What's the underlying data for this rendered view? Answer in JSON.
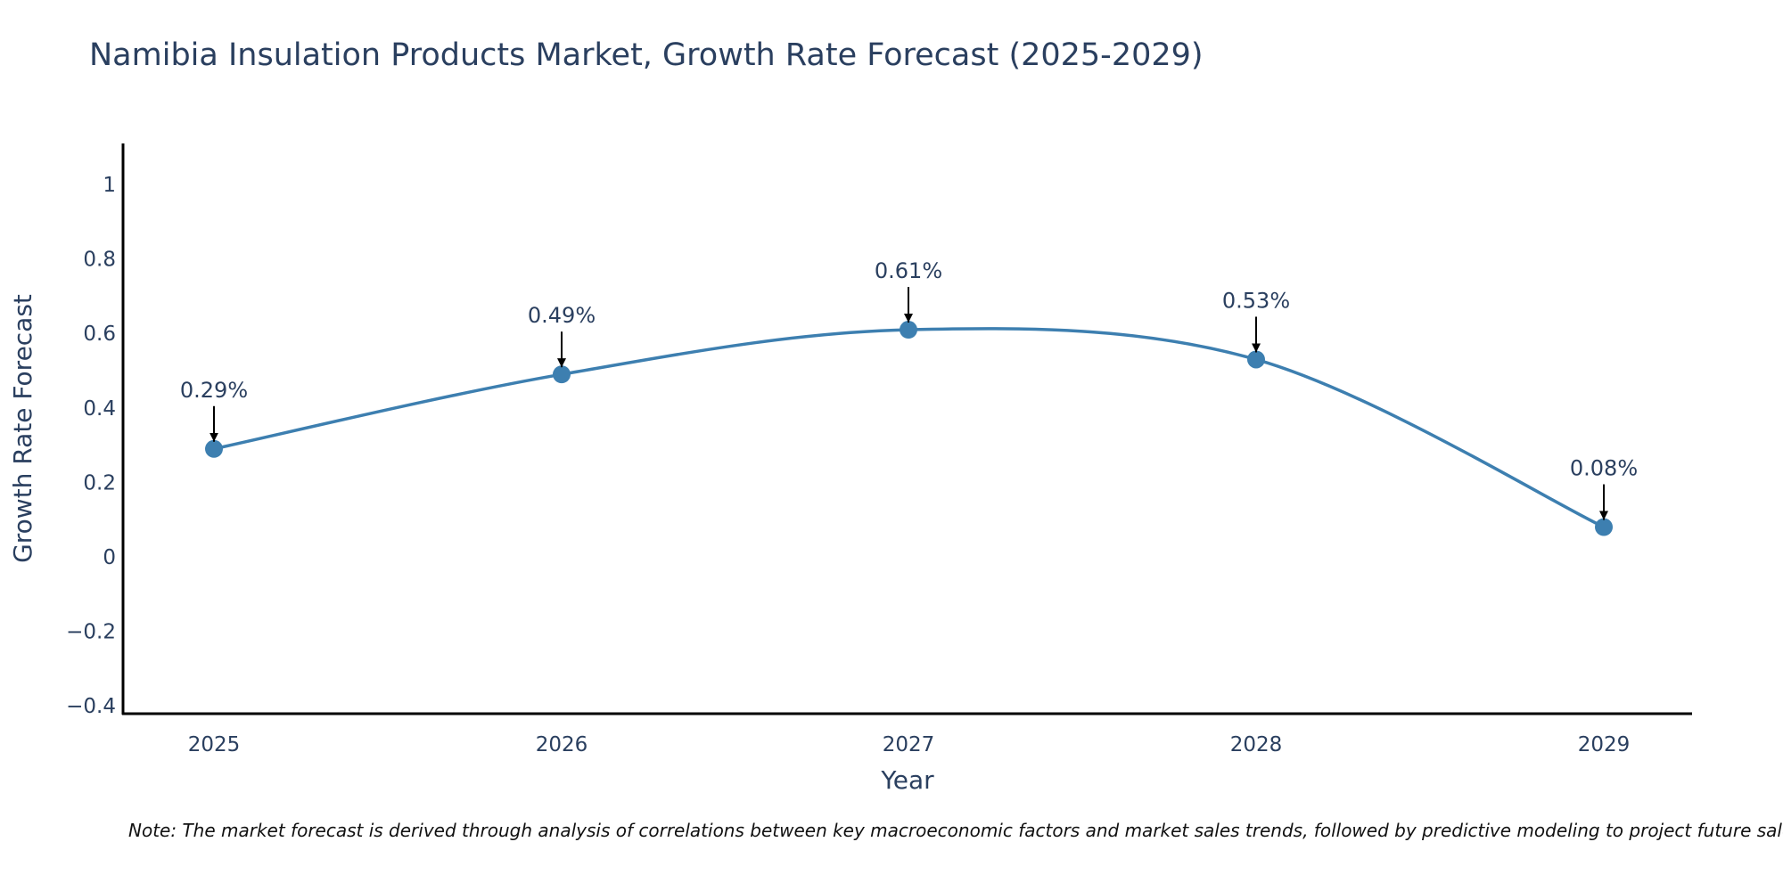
{
  "chart_data": {
    "type": "line",
    "title": "Namibia Insulation Products Market, Growth Rate Forecast (2025-2029)",
    "xlabel": "Year",
    "ylabel": "Growth Rate Forecast",
    "x": [
      "2025",
      "2026",
      "2027",
      "2028",
      "2029"
    ],
    "series": [
      {
        "name": "Growth Rate Forecast",
        "values": [
          0.29,
          0.49,
          0.61,
          0.53,
          0.08
        ],
        "color": "#3d7fb0"
      }
    ],
    "annotations": [
      "0.29%",
      "0.49%",
      "0.61%",
      "0.53%",
      "0.08%"
    ],
    "yticks": [
      -0.4,
      -0.2,
      0,
      0.2,
      0.4,
      0.6,
      0.8,
      1
    ],
    "ytick_labels": [
      "−0.4",
      "−0.2",
      "0",
      "0.2",
      "0.4",
      "0.6",
      "0.8",
      "1"
    ],
    "ylim": [
      -0.42,
      1.11
    ],
    "grid": false,
    "line_shape": "spline"
  },
  "note": "Note: The market forecast is derived through analysis of correlations between key macroeconomic factors and market sales trends, followed by predictive modeling to project future sales"
}
